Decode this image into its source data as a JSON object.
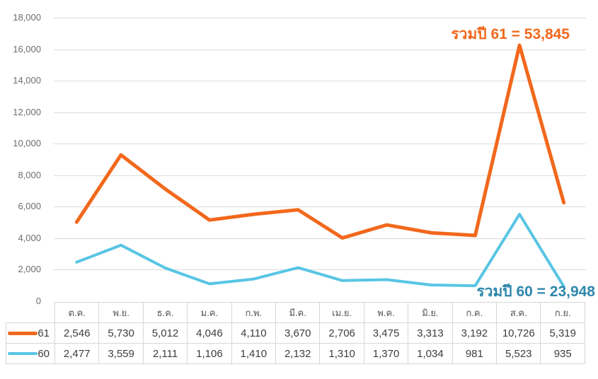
{
  "chart_data": {
    "type": "line",
    "title": "",
    "xlabel": "",
    "ylabel": "",
    "categories": [
      "ต.ค.",
      "พ.ย.",
      "ธ.ค.",
      "ม.ค.",
      "ก.พ.",
      "มี.ค.",
      "เม.ย.",
      "พ.ค.",
      "มิ.ย.",
      "ก.ค.",
      "ส.ค.",
      "ก.ย."
    ],
    "series": [
      {
        "name": "61",
        "color": "#f2681c",
        "line_width": 5,
        "values": [
          2546,
          5730,
          5012,
          4046,
          4110,
          3670,
          2706,
          3475,
          3313,
          3192,
          10726,
          5319
        ],
        "total": 53845
      },
      {
        "name": "60",
        "color": "#58c5e4",
        "line_width": 4,
        "values": [
          2477,
          3559,
          2111,
          1106,
          1410,
          2132,
          1310,
          1370,
          1034,
          981,
          5523,
          935
        ],
        "total": 23948
      }
    ],
    "stacking": "stacked: series '61' polyline is drawn at cumulative value (60 + 61); series '60' drawn at its own values",
    "y_axis": {
      "min": 0,
      "max": 18000,
      "step": 2000,
      "tick_labels_top_to_bottom": [
        "18,000",
        "16,000",
        "14,000",
        "12,000",
        "10,000",
        "8,000",
        "6,000",
        "4,000",
        "2,000",
        "0"
      ]
    },
    "grid": true,
    "gridline_color": "#dcdcdc",
    "legend_position": "left column of data table",
    "annotations": [
      {
        "text": "รวมปี 61 = 53,845",
        "color": "#f2681c",
        "series": "61"
      },
      {
        "text": "รวมปี 60 = 23,948",
        "color": "#2e87ab",
        "series": "60"
      }
    ]
  }
}
